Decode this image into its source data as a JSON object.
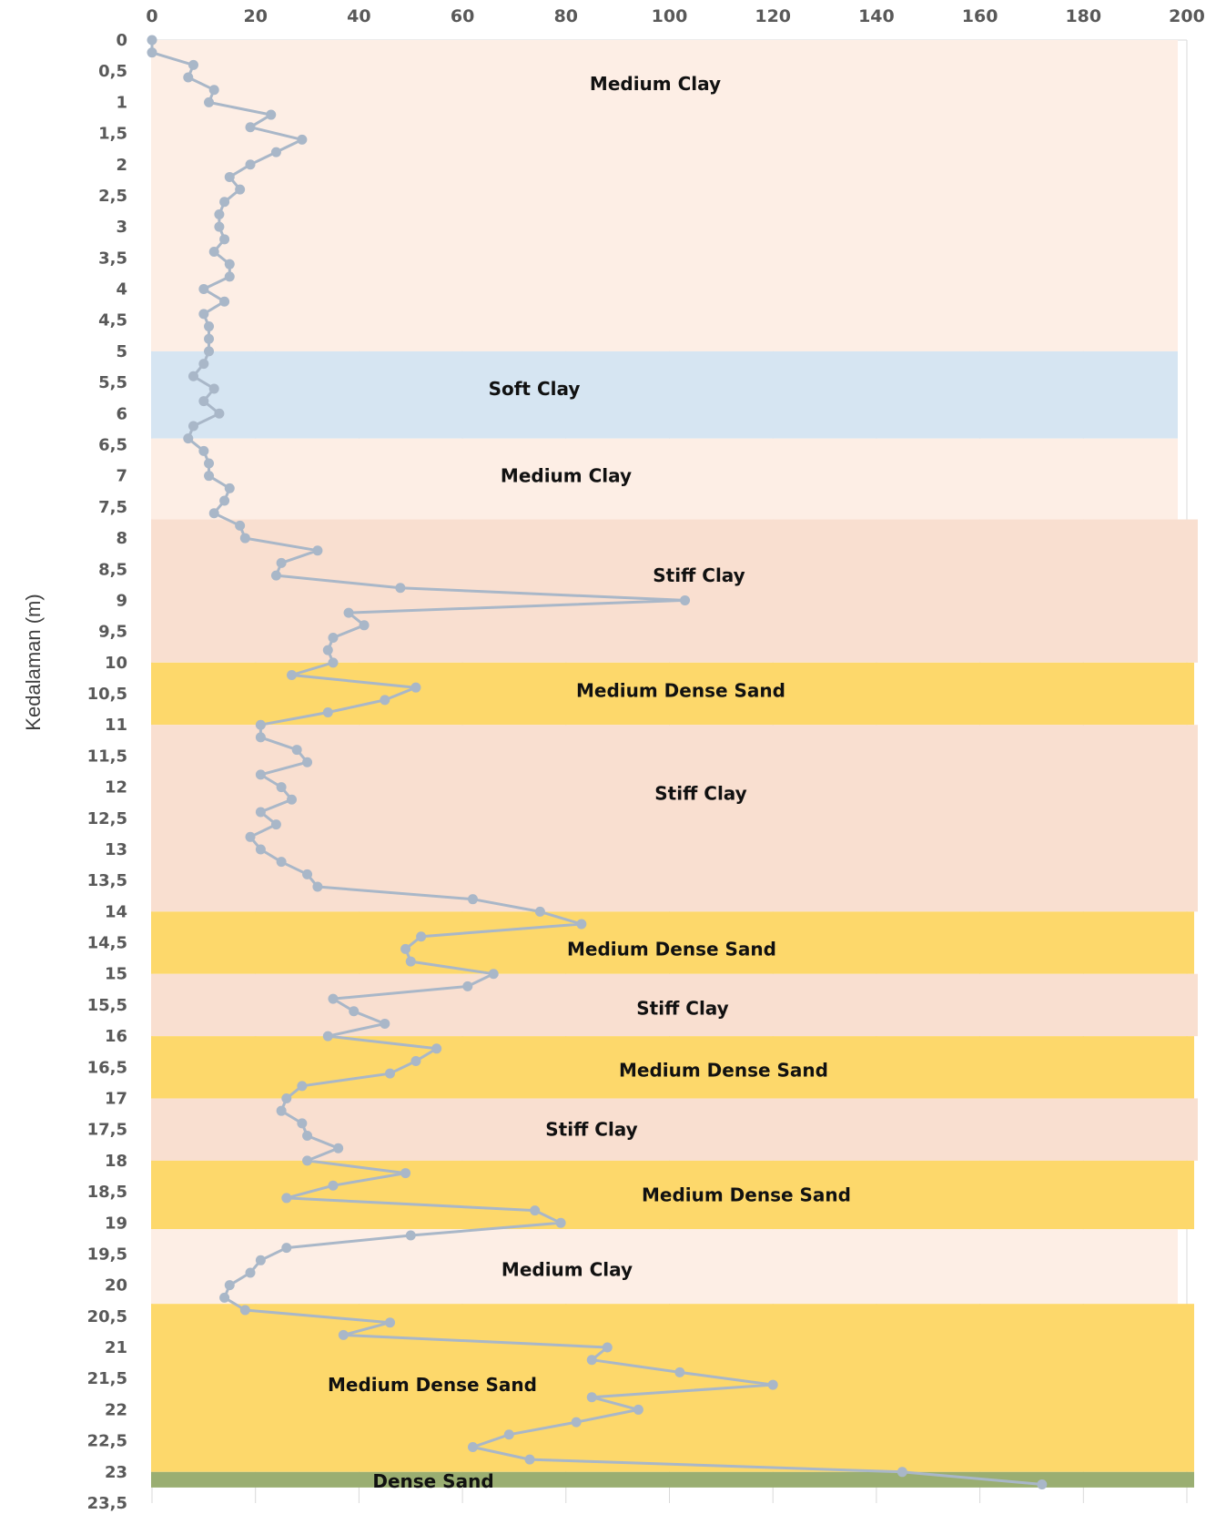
{
  "chart_data": {
    "type": "line",
    "title": "",
    "xlabel": "",
    "ylabel": "Kedalaman (m)",
    "x_axis_position": "top",
    "y_axis_inverted": true,
    "xlim": [
      0,
      200
    ],
    "ylim": [
      0,
      23.5
    ],
    "x_ticks": [
      0,
      20,
      40,
      60,
      80,
      100,
      120,
      140,
      160,
      180,
      200
    ],
    "y_ticks": [
      "0",
      "0,5",
      "1",
      "1,5",
      "2",
      "2,5",
      "3",
      "3,5",
      "4",
      "4,5",
      "5",
      "5,5",
      "6",
      "6,5",
      "7",
      "7,5",
      "8",
      "8,5",
      "9",
      "9,5",
      "10",
      "10,5",
      "11",
      "11,5",
      "12",
      "12,5",
      "13",
      "13,5",
      "14",
      "14,5",
      "15",
      "15,5",
      "16",
      "16,5",
      "17",
      "17,5",
      "18",
      "18,5",
      "19",
      "19,5",
      "20",
      "20,5",
      "21",
      "21,5",
      "22",
      "22,5",
      "23",
      "23,5"
    ],
    "y_tick_values": [
      0,
      0.5,
      1,
      1.5,
      2,
      2.5,
      3,
      3.5,
      4,
      4.5,
      5,
      5.5,
      6,
      6.5,
      7,
      7.5,
      8,
      8.5,
      9,
      9.5,
      10,
      10.5,
      11,
      11.5,
      12,
      12.5,
      13,
      13.5,
      14,
      14.5,
      15,
      15.5,
      16,
      16.5,
      17,
      17.5,
      18,
      18.5,
      19,
      19.5,
      20,
      20.5,
      21,
      21.5,
      22,
      22.5,
      23,
      23.5
    ],
    "grid": true,
    "layers": [
      {
        "label": "Medium Clay",
        "top": 0,
        "bottom": 5,
        "color": "#fdeee5"
      },
      {
        "label": "Soft Clay",
        "top": 5,
        "bottom": 6.4,
        "color": "#d6e5f2"
      },
      {
        "label": "Medium Clay",
        "top": 6.4,
        "bottom": 7.7,
        "color": "#fdeee5"
      },
      {
        "label": "Stiff Clay",
        "top": 7.7,
        "bottom": 10,
        "color": "#f9dfd0"
      },
      {
        "label": "Medium Dense Sand",
        "top": 10,
        "bottom": 11,
        "color": "#fdd86b"
      },
      {
        "label": "Stiff Clay",
        "top": 11,
        "bottom": 14,
        "color": "#f9dfd0"
      },
      {
        "label": "Medium Dense Sand",
        "top": 14,
        "bottom": 15,
        "color": "#fdd86b"
      },
      {
        "label": "Stiff Clay",
        "top": 15,
        "bottom": 16,
        "color": "#f9dfd0"
      },
      {
        "label": "Medium Dense Sand",
        "top": 16,
        "bottom": 17,
        "color": "#fdd86b"
      },
      {
        "label": "Stiff Clay",
        "top": 17,
        "bottom": 18,
        "color": "#f9dfd0"
      },
      {
        "label": "Medium Dense Sand",
        "top": 18,
        "bottom": 19.1,
        "color": "#fdd86b"
      },
      {
        "label": "Medium Clay",
        "top": 19.1,
        "bottom": 20.3,
        "color": "#fdeee5"
      },
      {
        "label": "Medium Dense Sand",
        "top": 20.3,
        "bottom": 23,
        "color": "#fdd86b"
      },
      {
        "label": "Dense Sand",
        "top": 23,
        "bottom": 23.25,
        "color": "#9aae72"
      }
    ],
    "series": [
      {
        "points": [
          [
            0,
            0
          ],
          [
            0,
            0.2
          ],
          [
            8,
            0.4
          ],
          [
            7,
            0.6
          ],
          [
            12,
            0.8
          ],
          [
            11,
            1
          ],
          [
            23,
            1.2
          ],
          [
            19,
            1.4
          ],
          [
            29,
            1.6
          ],
          [
            24,
            1.8
          ],
          [
            19,
            2
          ],
          [
            15,
            2.2
          ],
          [
            17,
            2.4
          ],
          [
            14,
            2.6
          ],
          [
            13,
            2.8
          ],
          [
            13,
            3
          ],
          [
            14,
            3.2
          ],
          [
            12,
            3.4
          ],
          [
            15,
            3.6
          ],
          [
            15,
            3.8
          ],
          [
            10,
            4
          ],
          [
            14,
            4.2
          ],
          [
            10,
            4.4
          ],
          [
            11,
            4.6
          ],
          [
            11,
            4.8
          ],
          [
            11,
            5
          ],
          [
            10,
            5.2
          ],
          [
            8,
            5.4
          ],
          [
            12,
            5.6
          ],
          [
            10,
            5.8
          ],
          [
            13,
            6
          ],
          [
            8,
            6.2
          ],
          [
            7,
            6.4
          ],
          [
            10,
            6.6
          ],
          [
            11,
            6.8
          ],
          [
            11,
            7
          ],
          [
            15,
            7.2
          ],
          [
            14,
            7.4
          ],
          [
            12,
            7.6
          ],
          [
            17,
            7.8
          ],
          [
            18,
            8
          ],
          [
            32,
            8.2
          ],
          [
            25,
            8.4
          ],
          [
            24,
            8.6
          ],
          [
            48,
            8.8
          ],
          [
            103,
            9
          ],
          [
            38,
            9.2
          ],
          [
            41,
            9.4
          ],
          [
            35,
            9.6
          ],
          [
            34,
            9.8
          ],
          [
            35,
            10
          ],
          [
            27,
            10.2
          ],
          [
            51,
            10.4
          ],
          [
            45,
            10.6
          ],
          [
            34,
            10.8
          ],
          [
            21,
            11
          ],
          [
            21,
            11.2
          ],
          [
            28,
            11.4
          ],
          [
            30,
            11.6
          ],
          [
            21,
            11.8
          ],
          [
            25,
            12
          ],
          [
            27,
            12.2
          ],
          [
            21,
            12.4
          ],
          [
            24,
            12.6
          ],
          [
            19,
            12.8
          ],
          [
            21,
            13
          ],
          [
            25,
            13.2
          ],
          [
            30,
            13.4
          ],
          [
            32,
            13.6
          ],
          [
            62,
            13.8
          ],
          [
            75,
            14
          ],
          [
            83,
            14.2
          ],
          [
            52,
            14.4
          ],
          [
            49,
            14.6
          ],
          [
            50,
            14.8
          ],
          [
            66,
            15
          ],
          [
            61,
            15.2
          ],
          [
            35,
            15.4
          ],
          [
            39,
            15.6
          ],
          [
            45,
            15.8
          ],
          [
            34,
            16
          ],
          [
            55,
            16.2
          ],
          [
            51,
            16.4
          ],
          [
            46,
            16.6
          ],
          [
            29,
            16.8
          ],
          [
            26,
            17
          ],
          [
            25,
            17.2
          ],
          [
            29,
            17.4
          ],
          [
            30,
            17.6
          ],
          [
            36,
            17.8
          ],
          [
            30,
            18
          ],
          [
            49,
            18.2
          ],
          [
            35,
            18.4
          ],
          [
            26,
            18.6
          ],
          [
            74,
            18.8
          ],
          [
            79,
            19
          ],
          [
            50,
            19.2
          ],
          [
            26,
            19.4
          ],
          [
            21,
            19.6
          ],
          [
            19,
            19.8
          ],
          [
            15,
            20
          ],
          [
            14,
            20.2
          ],
          [
            18,
            20.4
          ],
          [
            46,
            20.6
          ],
          [
            37,
            20.8
          ],
          [
            88,
            21
          ],
          [
            85,
            21.2
          ],
          [
            102,
            21.4
          ],
          [
            120,
            21.6
          ],
          [
            85,
            21.8
          ],
          [
            94,
            22
          ],
          [
            82,
            22.2
          ],
          [
            69,
            22.4
          ],
          [
            62,
            22.6
          ],
          [
            73,
            22.8
          ],
          [
            145,
            23
          ],
          [
            172,
            23.2
          ]
        ]
      }
    ]
  }
}
